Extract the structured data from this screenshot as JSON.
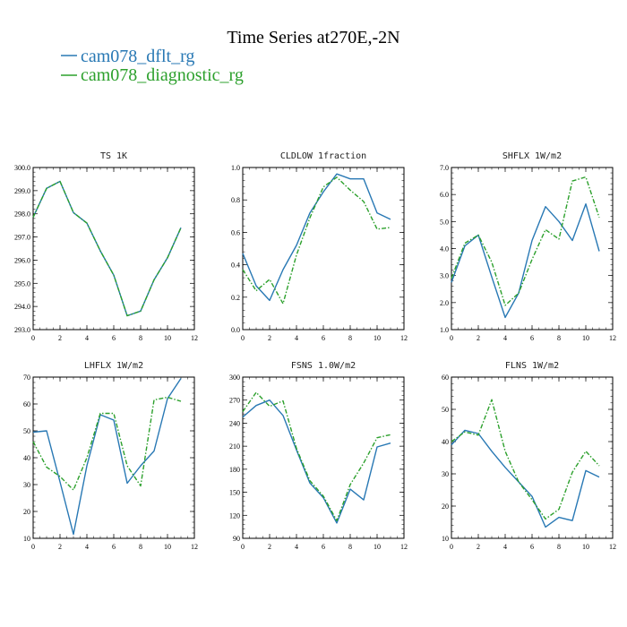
{
  "figure": {
    "title": "Time Series at270E,-2N",
    "legend": [
      {
        "label": "cam078_dflt_rg",
        "color": "#2878b4",
        "dash": "solid"
      },
      {
        "label": "cam078_diagnostic_rg",
        "color": "#2ca02c",
        "dash": "dashed"
      }
    ]
  },
  "chart_data": [
    {
      "type": "line",
      "title": "TS 1K",
      "xlim": [
        0,
        12
      ],
      "ylim": [
        293.0,
        300.0
      ],
      "xticks": [
        0,
        2,
        4,
        6,
        8,
        10,
        12
      ],
      "yticks": [
        293.0,
        294.0,
        295.0,
        296.0,
        297.0,
        298.0,
        299.0,
        300.0
      ],
      "ytick_labels": [
        "293.0",
        "294.0",
        "295.0",
        "296.0",
        "297.0",
        "298.0",
        "299.0",
        "300.0"
      ],
      "series": [
        {
          "name": "cam078_dflt_rg",
          "x": [
            0,
            1,
            2,
            3,
            4,
            5,
            6,
            7,
            8,
            9,
            10,
            11
          ],
          "y": [
            297.85,
            299.1,
            299.4,
            298.05,
            297.6,
            296.4,
            295.35,
            293.6,
            293.8,
            295.15,
            296.1,
            297.4
          ]
        },
        {
          "name": "cam078_diagnostic_rg",
          "x": [
            0,
            1,
            2,
            3,
            4,
            5,
            6,
            7,
            8,
            9,
            10,
            11
          ],
          "y": [
            297.85,
            299.1,
            299.4,
            298.05,
            297.6,
            296.4,
            295.35,
            293.6,
            293.8,
            295.15,
            296.1,
            297.4
          ]
        }
      ]
    },
    {
      "type": "line",
      "title": "CLDLOW 1fraction",
      "xlim": [
        0,
        12
      ],
      "ylim": [
        0.0,
        1.0
      ],
      "xticks": [
        0,
        2,
        4,
        6,
        8,
        10,
        12
      ],
      "yticks": [
        0.0,
        0.2,
        0.4,
        0.6,
        0.8,
        1.0
      ],
      "ytick_labels": [
        "0.0",
        "0.2",
        "0.4",
        "0.6",
        "0.8",
        "1.0"
      ],
      "series": [
        {
          "name": "cam078_dflt_rg",
          "x": [
            0,
            1,
            2,
            3,
            4,
            5,
            6,
            7,
            8,
            9,
            10,
            11
          ],
          "y": [
            0.47,
            0.27,
            0.18,
            0.37,
            0.52,
            0.72,
            0.85,
            0.96,
            0.93,
            0.93,
            0.72,
            0.68
          ]
        },
        {
          "name": "cam078_diagnostic_rg",
          "x": [
            0,
            1,
            2,
            3,
            4,
            5,
            6,
            7,
            8,
            9,
            10,
            11
          ],
          "y": [
            0.37,
            0.24,
            0.31,
            0.16,
            0.46,
            0.69,
            0.88,
            0.94,
            0.86,
            0.79,
            0.62,
            0.63
          ]
        }
      ]
    },
    {
      "type": "line",
      "title": "SHFLX 1W/m2",
      "xlim": [
        0,
        12
      ],
      "ylim": [
        1.0,
        7.0
      ],
      "xticks": [
        0,
        2,
        4,
        6,
        8,
        10,
        12
      ],
      "yticks": [
        1.0,
        2.0,
        3.0,
        4.0,
        5.0,
        6.0,
        7.0
      ],
      "ytick_labels": [
        "1.0",
        "2.0",
        "3.0",
        "4.0",
        "5.0",
        "6.0",
        "7.0"
      ],
      "series": [
        {
          "name": "cam078_dflt_rg",
          "x": [
            0,
            1,
            2,
            3,
            4,
            5,
            6,
            7,
            8,
            9,
            10,
            11
          ],
          "y": [
            2.75,
            4.1,
            4.5,
            2.95,
            1.45,
            2.35,
            4.3,
            5.55,
            5.0,
            4.3,
            5.65,
            3.9
          ]
        },
        {
          "name": "cam078_diagnostic_rg",
          "x": [
            0,
            1,
            2,
            3,
            4,
            5,
            6,
            7,
            8,
            9,
            10,
            11
          ],
          "y": [
            2.9,
            4.2,
            4.5,
            3.5,
            1.9,
            2.35,
            3.6,
            4.7,
            4.35,
            6.5,
            6.65,
            5.15
          ]
        }
      ]
    },
    {
      "type": "line",
      "title": "LHFLX 1W/m2",
      "xlim": [
        0,
        12
      ],
      "ylim": [
        10,
        70
      ],
      "xticks": [
        0,
        2,
        4,
        6,
        8,
        10,
        12
      ],
      "yticks": [
        10,
        20,
        30,
        40,
        50,
        60,
        70
      ],
      "ytick_labels": [
        "10",
        "20",
        "30",
        "40",
        "50",
        "60",
        "70"
      ],
      "series": [
        {
          "name": "cam078_dflt_rg",
          "x": [
            0,
            1,
            2,
            3,
            4,
            5,
            6,
            7,
            8,
            9,
            10,
            11
          ],
          "y": [
            49.5,
            50,
            31,
            11.5,
            37,
            56,
            54,
            30.5,
            37,
            42.5,
            62,
            69.5
          ]
        },
        {
          "name": "cam078_diagnostic_rg",
          "x": [
            0,
            1,
            2,
            3,
            4,
            5,
            6,
            7,
            8,
            9,
            10,
            11
          ],
          "y": [
            46,
            36.5,
            33,
            28,
            40,
            56.5,
            56.5,
            37,
            29.5,
            61.5,
            62.5,
            61
          ]
        }
      ]
    },
    {
      "type": "line",
      "title": "FSNS 1.0W/m2",
      "xlim": [
        0,
        12
      ],
      "ylim": [
        90,
        300
      ],
      "xticks": [
        0,
        2,
        4,
        6,
        8,
        10,
        12
      ],
      "yticks": [
        90,
        120,
        150,
        180,
        210,
        240,
        270,
        300
      ],
      "ytick_labels": [
        "90",
        "120",
        "150",
        "180",
        "210",
        "240",
        "270",
        "300"
      ],
      "series": [
        {
          "name": "cam078_dflt_rg",
          "x": [
            0,
            1,
            2,
            3,
            4,
            5,
            6,
            7,
            8,
            9,
            10,
            11
          ],
          "y": [
            248,
            263,
            270,
            250,
            205,
            162,
            143,
            110,
            154,
            140,
            209,
            214
          ]
        },
        {
          "name": "cam078_diagnostic_rg",
          "x": [
            0,
            1,
            2,
            3,
            4,
            5,
            6,
            7,
            8,
            9,
            10,
            11
          ],
          "y": [
            255,
            280,
            262,
            269,
            207,
            165,
            145,
            113,
            160,
            188,
            221,
            225
          ]
        }
      ]
    },
    {
      "type": "line",
      "title": "FLNS 1W/m2",
      "xlim": [
        0,
        12
      ],
      "ylim": [
        10,
        60
      ],
      "xticks": [
        0,
        2,
        4,
        6,
        8,
        10,
        12
      ],
      "yticks": [
        10,
        20,
        30,
        40,
        50,
        60
      ],
      "ytick_labels": [
        "10",
        "20",
        "30",
        "40",
        "50",
        "60"
      ],
      "series": [
        {
          "name": "cam078_dflt_rg",
          "x": [
            0,
            1,
            2,
            3,
            4,
            5,
            6,
            7,
            8,
            9,
            10,
            11
          ],
          "y": [
            39,
            43.5,
            42.5,
            37,
            32,
            27.5,
            23,
            13.5,
            16.5,
            15.5,
            31,
            29
          ]
        },
        {
          "name": "cam078_diagnostic_rg",
          "x": [
            0,
            1,
            2,
            3,
            4,
            5,
            6,
            7,
            8,
            9,
            10,
            11
          ],
          "y": [
            40,
            43,
            42,
            53,
            37,
            27.5,
            22,
            16,
            19,
            30.5,
            37,
            32.5
          ]
        }
      ]
    }
  ]
}
